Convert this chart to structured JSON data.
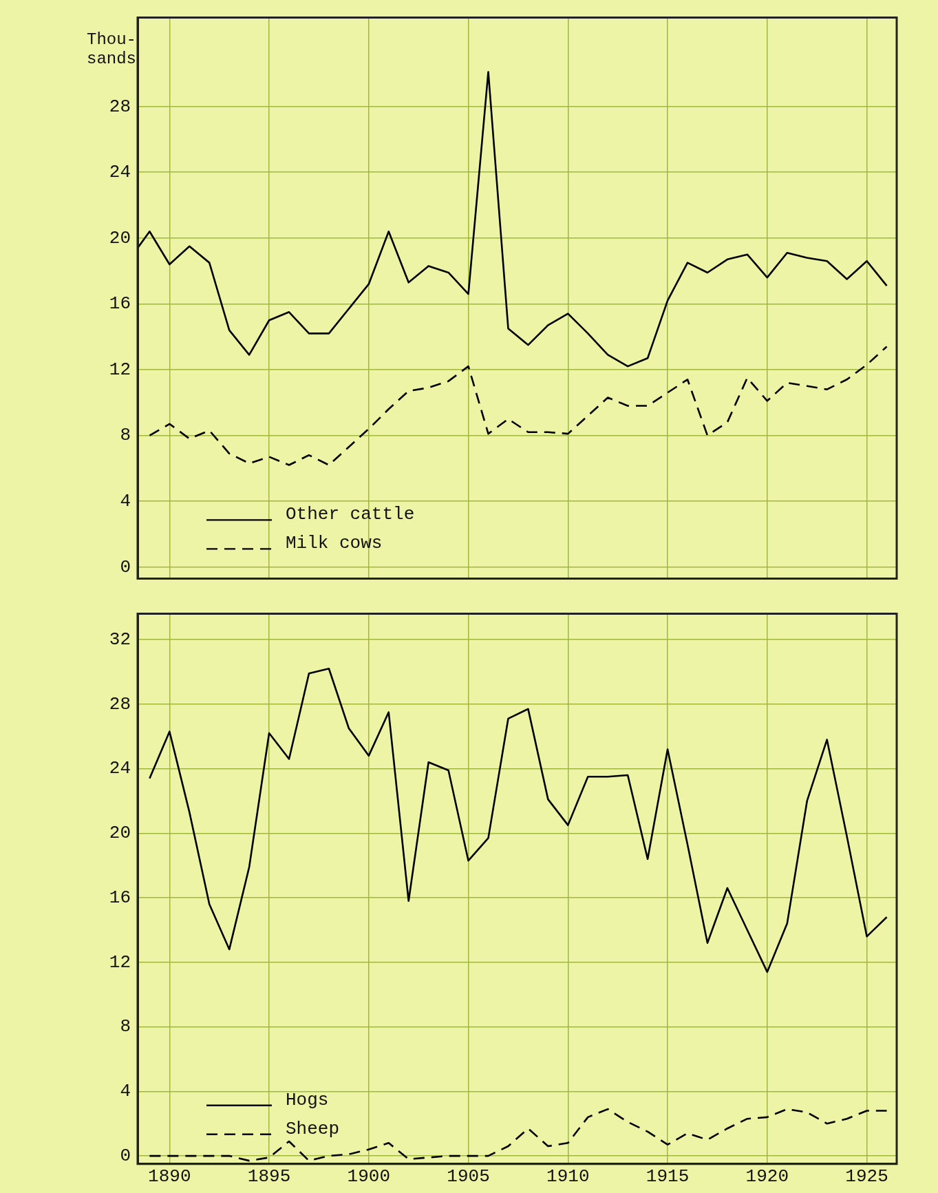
{
  "chart_data": [
    {
      "type": "line",
      "ylabel": "Thou-\nsands",
      "x": [
        1889,
        1890,
        1891,
        1892,
        1893,
        1894,
        1895,
        1896,
        1897,
        1898,
        1899,
        1900,
        1901,
        1902,
        1903,
        1904,
        1905,
        1906,
        1907,
        1908,
        1909,
        1910,
        1911,
        1912,
        1913,
        1914,
        1915,
        1916,
        1917,
        1918,
        1919,
        1920,
        1921,
        1922,
        1923,
        1924,
        1925,
        1926
      ],
      "series": [
        {
          "name": "Other cattle",
          "color": "#000000",
          "line_style": "solid",
          "x": [
            1888.4,
            1889,
            1890,
            1891,
            1892,
            1893,
            1894,
            1895,
            1896,
            1897,
            1898,
            1899,
            1900,
            1901,
            1902,
            1903,
            1904,
            1905,
            1906,
            1907,
            1908,
            1909,
            1910,
            1911,
            1912,
            1913,
            1914,
            1915,
            1916,
            1917,
            1918,
            1919,
            1920,
            1921,
            1922,
            1923,
            1924,
            1925,
            1926
          ],
          "values": [
            19.4,
            20.4,
            18.4,
            19.5,
            18.5,
            14.4,
            12.9,
            15.0,
            15.5,
            14.2,
            14.2,
            15.7,
            17.2,
            20.4,
            17.3,
            18.3,
            17.9,
            16.6,
            30.1,
            14.5,
            13.5,
            14.7,
            15.4,
            14.2,
            12.9,
            12.2,
            12.7,
            16.2,
            18.5,
            17.9,
            18.7,
            19.0,
            17.6,
            19.1,
            18.8,
            18.6,
            17.5,
            18.6,
            17.1
          ]
        },
        {
          "name": "Milk cows",
          "color": "#000000",
          "line_style": "dashed",
          "values": [
            8.0,
            8.7,
            7.8,
            8.3,
            6.9,
            6.3,
            6.7,
            6.2,
            6.8,
            6.2,
            7.3,
            8.4,
            9.6,
            10.7,
            10.9,
            11.3,
            12.2,
            8.1,
            9.0,
            8.2,
            8.2,
            8.1,
            9.2,
            10.3,
            9.8,
            9.8,
            10.6,
            11.4,
            8.0,
            8.8,
            11.5,
            10.1,
            11.2,
            11.0,
            10.8,
            11.4,
            12.3,
            13.4
          ]
        }
      ],
      "xlim": [
        1888.4,
        1926.5
      ],
      "xticks": [
        1890,
        1895,
        1900,
        1905,
        1910,
        1915,
        1920,
        1925
      ],
      "ylim": [
        -0.7,
        33.4
      ],
      "yticks": [
        0,
        4,
        8,
        12,
        16,
        20,
        24,
        28
      ],
      "tick_labels": "y",
      "grid": true,
      "legend": "bottom left",
      "marker": "none"
    },
    {
      "type": "line",
      "x": [
        1889,
        1890,
        1891,
        1892,
        1893,
        1894,
        1895,
        1896,
        1897,
        1898,
        1899,
        1900,
        1901,
        1902,
        1903,
        1904,
        1905,
        1906,
        1907,
        1908,
        1909,
        1910,
        1911,
        1912,
        1913,
        1914,
        1915,
        1916,
        1917,
        1918,
        1919,
        1920,
        1921,
        1922,
        1923,
        1924,
        1925,
        1926
      ],
      "series": [
        {
          "name": "Hogs",
          "color": "#000000",
          "line_style": "solid",
          "values": [
            23.4,
            26.3,
            21.3,
            15.6,
            12.8,
            17.9,
            26.2,
            24.6,
            29.9,
            30.2,
            26.5,
            24.8,
            27.5,
            15.8,
            24.4,
            23.9,
            18.3,
            19.7,
            27.1,
            27.7,
            22.1,
            20.5,
            23.5,
            23.5,
            23.6,
            18.4,
            25.2,
            19.3,
            13.2,
            16.6,
            14.0,
            11.4,
            14.4,
            22.0,
            25.8,
            19.8,
            13.6,
            14.8
          ]
        },
        {
          "name": "Sheep",
          "color": "#000000",
          "line_style": "dashed",
          "values": [
            0.0,
            0.0,
            0.0,
            0.0,
            0.0,
            -0.3,
            -0.1,
            0.9,
            -0.3,
            0.0,
            0.1,
            0.4,
            0.8,
            -0.2,
            -0.1,
            0.0,
            0.0,
            0.0,
            0.6,
            1.7,
            0.6,
            0.8,
            2.4,
            2.9,
            2.1,
            1.5,
            0.7,
            1.4,
            1.0,
            1.7,
            2.3,
            2.4,
            2.9,
            2.7,
            2.0,
            2.3,
            2.8,
            2.8
          ]
        }
      ],
      "xlim": [
        1888.4,
        1926.5
      ],
      "xticks": [
        1890,
        1895,
        1900,
        1905,
        1910,
        1915,
        1920,
        1925
      ],
      "ylim": [
        -0.5,
        33.6
      ],
      "yticks": [
        0,
        4,
        8,
        12,
        16,
        20,
        24,
        28,
        32
      ],
      "grid": true,
      "legend": "bottom left",
      "marker": "none"
    }
  ]
}
